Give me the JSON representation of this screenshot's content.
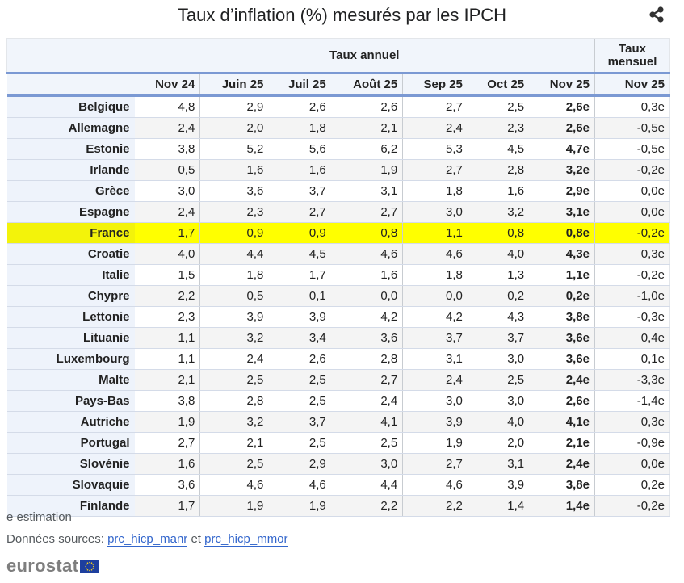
{
  "title": "Taux d’inflation (%) mesurés par les IPCH",
  "share_icon": "share-icon",
  "table": {
    "group_headers": {
      "annual": "Taux annuel",
      "monthly": "Taux mensuel"
    },
    "columns": [
      "Nov 24",
      "Juin 25",
      "Juil 25",
      "Août 25",
      "Sep 25",
      "Oct 25",
      "Nov 25",
      "Nov 25"
    ],
    "highlight_color": "#ffff00",
    "highlight_row": "France",
    "rows": [
      {
        "country": "Belgique",
        "values": [
          "4,8",
          "2,9",
          "2,6",
          "2,6",
          "2,7",
          "2,5",
          "2,6e",
          "0,3e"
        ]
      },
      {
        "country": "Allemagne",
        "values": [
          "2,4",
          "2,0",
          "1,8",
          "2,1",
          "2,4",
          "2,3",
          "2,6e",
          "-0,5e"
        ]
      },
      {
        "country": "Estonie",
        "values": [
          "3,8",
          "5,2",
          "5,6",
          "6,2",
          "5,3",
          "4,5",
          "4,7e",
          "-0,5e"
        ]
      },
      {
        "country": "Irlande",
        "values": [
          "0,5",
          "1,6",
          "1,6",
          "1,9",
          "2,7",
          "2,8",
          "3,2e",
          "-0,2e"
        ]
      },
      {
        "country": "Grèce",
        "values": [
          "3,0",
          "3,6",
          "3,7",
          "3,1",
          "1,8",
          "1,6",
          "2,9e",
          "0,0e"
        ]
      },
      {
        "country": "Espagne",
        "values": [
          "2,4",
          "2,3",
          "2,7",
          "2,7",
          "3,0",
          "3,2",
          "3,1e",
          "0,0e"
        ]
      },
      {
        "country": "France",
        "values": [
          "1,7",
          "0,9",
          "0,9",
          "0,8",
          "1,1",
          "0,8",
          "0,8e",
          "-0,2e"
        ]
      },
      {
        "country": "Croatie",
        "values": [
          "4,0",
          "4,4",
          "4,5",
          "4,6",
          "4,6",
          "4,0",
          "4,3e",
          "0,3e"
        ]
      },
      {
        "country": "Italie",
        "values": [
          "1,5",
          "1,8",
          "1,7",
          "1,6",
          "1,8",
          "1,3",
          "1,1e",
          "-0,2e"
        ]
      },
      {
        "country": "Chypre",
        "values": [
          "2,2",
          "0,5",
          "0,1",
          "0,0",
          "0,0",
          "0,2",
          "0,2e",
          "-1,0e"
        ]
      },
      {
        "country": "Lettonie",
        "values": [
          "2,3",
          "3,9",
          "3,9",
          "4,2",
          "4,2",
          "4,3",
          "3,8e",
          "-0,3e"
        ]
      },
      {
        "country": "Lituanie",
        "values": [
          "1,1",
          "3,2",
          "3,4",
          "3,6",
          "3,7",
          "3,7",
          "3,6e",
          "0,4e"
        ]
      },
      {
        "country": "Luxembourg",
        "values": [
          "1,1",
          "2,4",
          "2,6",
          "2,8",
          "3,1",
          "3,0",
          "3,6e",
          "0,1e"
        ]
      },
      {
        "country": "Malte",
        "values": [
          "2,1",
          "2,5",
          "2,5",
          "2,7",
          "2,4",
          "2,5",
          "2,4e",
          "-3,3e"
        ]
      },
      {
        "country": "Pays-Bas",
        "values": [
          "3,8",
          "2,8",
          "2,5",
          "2,4",
          "3,0",
          "3,0",
          "2,6e",
          "-1,4e"
        ]
      },
      {
        "country": "Autriche",
        "values": [
          "1,9",
          "3,2",
          "3,7",
          "4,1",
          "3,9",
          "4,0",
          "4,1e",
          "0,3e"
        ]
      },
      {
        "country": "Portugal",
        "values": [
          "2,7",
          "2,1",
          "2,5",
          "2,5",
          "1,9",
          "2,0",
          "2,1e",
          "-0,9e"
        ]
      },
      {
        "country": "Slovénie",
        "values": [
          "1,6",
          "2,5",
          "2,9",
          "3,0",
          "2,7",
          "3,1",
          "2,4e",
          "0,0e"
        ]
      },
      {
        "country": "Slovaquie",
        "values": [
          "3,6",
          "4,6",
          "4,6",
          "4,4",
          "4,6",
          "3,9",
          "3,8e",
          "0,2e"
        ]
      },
      {
        "country": "Finlande",
        "values": [
          "1,7",
          "1,9",
          "1,9",
          "2,2",
          "2,2",
          "1,4",
          "1,4e",
          "-0,2e"
        ]
      }
    ]
  },
  "footer": {
    "note": "e estimation",
    "sources_label": "Données sources:",
    "source_link_1": "prc_hicp_manr",
    "conjunction": "et",
    "source_link_2": "prc_hicp_mmor",
    "logo_text": "eurostat"
  }
}
